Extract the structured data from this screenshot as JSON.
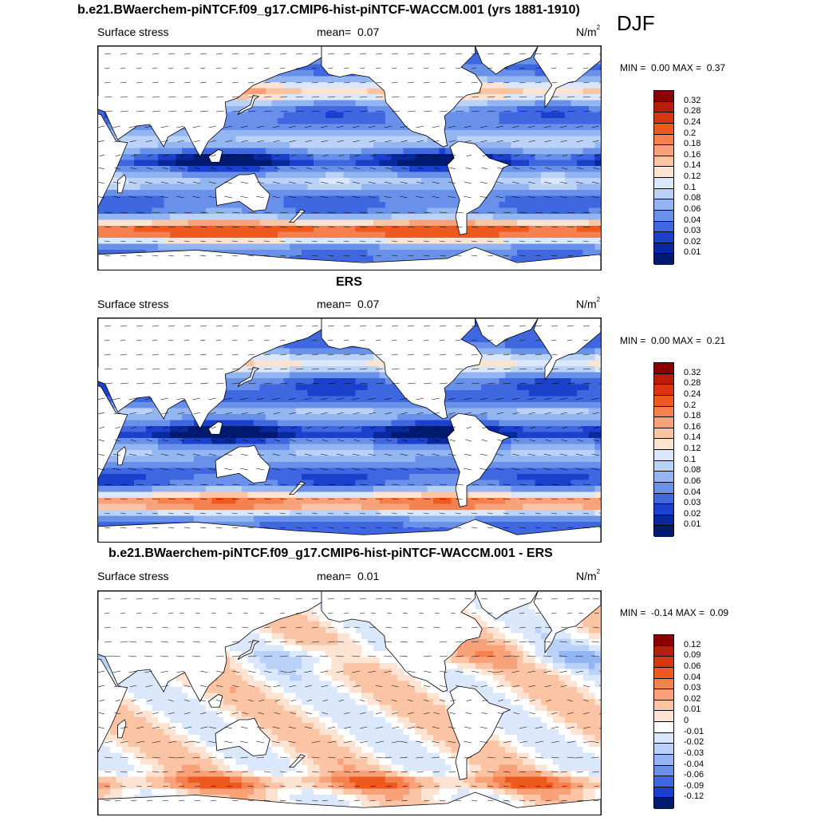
{
  "main_title": "b.e21.BWaerchem-piNTCF.f09_g17.CMIP6-hist-piNTCF-WACCM.001 (yrs 1881-1910)",
  "season": "DJF",
  "panels": [
    {
      "heading": "",
      "left_label": "Surface stress",
      "mean_label": "mean=",
      "mean_value": "0.07",
      "units_base": "N/m",
      "units_exp": "2",
      "min_label": "MIN =",
      "min_value": "0.00",
      "max_label": "MAX =",
      "max_value": "0.37",
      "scale": "sequential",
      "levels": [
        "0.32",
        "0.28",
        "0.24",
        "0.2",
        "0.18",
        "0.16",
        "0.14",
        "0.12",
        "0.1",
        "0.08",
        "0.06",
        "0.04",
        "0.03",
        "0.02",
        "0.01"
      ]
    },
    {
      "heading": "ERS",
      "left_label": "Surface stress",
      "mean_label": "mean=",
      "mean_value": "0.07",
      "units_base": "N/m",
      "units_exp": "2",
      "min_label": "MIN =",
      "min_value": "0.00",
      "max_label": "MAX =",
      "max_value": "0.21",
      "scale": "sequential",
      "levels": [
        "0.32",
        "0.28",
        "0.24",
        "0.2",
        "0.18",
        "0.16",
        "0.14",
        "0.12",
        "0.1",
        "0.08",
        "0.06",
        "0.04",
        "0.03",
        "0.02",
        "0.01"
      ]
    },
    {
      "heading": "b.e21.BWaerchem-piNTCF.f09_g17.CMIP6-hist-piNTCF-WACCM.001 - ERS",
      "left_label": "Surface stress",
      "mean_label": "mean=",
      "mean_value": "0.01",
      "units_base": "N/m",
      "units_exp": "2",
      "min_label": "MIN =",
      "min_value": "-0.14",
      "max_label": "MAX =",
      "max_value": "0.09",
      "scale": "diverging",
      "levels": [
        "0.12",
        "0.09",
        "0.06",
        "0.04",
        "0.03",
        "0.02",
        "0.01",
        "0",
        "-0.01",
        "-0.02",
        "-0.03",
        "-0.04",
        "-0.06",
        "-0.09",
        "-0.12"
      ]
    }
  ],
  "colors": {
    "sequential": [
      "#8b0000",
      "#b81c0a",
      "#d7370f",
      "#ee5a1e",
      "#f6804e",
      "#f9a27a",
      "#fbc4a5",
      "#fde3d2",
      "#dbe8fb",
      "#bad2f7",
      "#93b5f1",
      "#6a91ea",
      "#3f67e0",
      "#1b41cc",
      "#08289e",
      "#001a70"
    ],
    "diverging": [
      "#8b0000",
      "#b81c0a",
      "#d7370f",
      "#ee5a1e",
      "#f6804e",
      "#f9a27a",
      "#fbc4a5",
      "#fde3d2",
      "#ffffff",
      "#dbe8fb",
      "#bad2f7",
      "#93b5f1",
      "#6a91ea",
      "#3f67e0",
      "#1b41cc",
      "#001a70"
    ],
    "land": "#ffffff",
    "coast": "#000000"
  }
}
